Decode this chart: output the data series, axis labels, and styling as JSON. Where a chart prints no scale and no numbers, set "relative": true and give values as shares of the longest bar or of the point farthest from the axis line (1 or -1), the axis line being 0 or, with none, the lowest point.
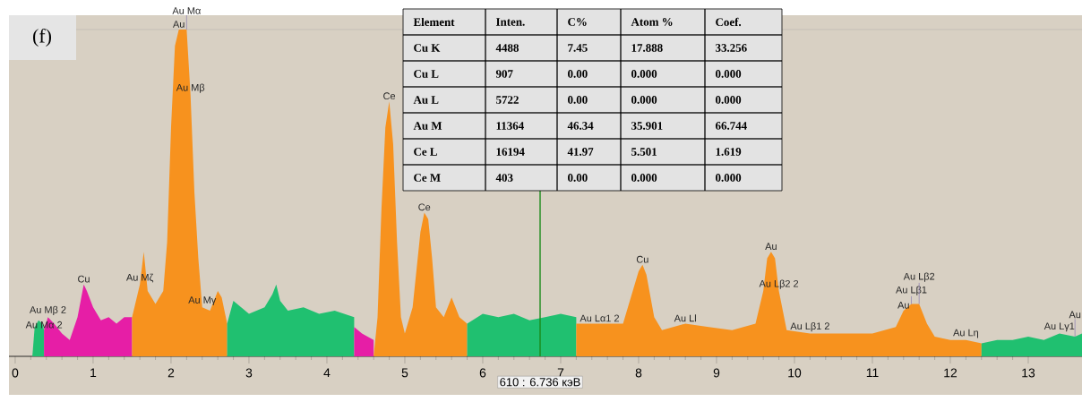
{
  "chart_data": {
    "type": "area",
    "title": "(f)",
    "relative": true,
    "xlim": [
      -0.08,
      13.69
    ],
    "xticks": [
      0,
      1,
      2,
      3,
      4,
      5,
      6,
      7,
      8,
      9,
      10,
      11,
      12,
      13
    ],
    "series": [
      {
        "color": "#20c070",
        "x": [
          0.22,
          0.25,
          0.3,
          0.35,
          0.37
        ],
        "values": [
          0,
          0.09,
          0.11,
          0.1,
          0.08
        ]
      },
      {
        "color": "#e61ea6",
        "x": [
          0.37,
          0.42,
          0.5,
          0.6,
          0.7,
          0.8,
          0.88,
          0.92,
          1.0,
          1.1,
          1.2,
          1.3,
          1.4,
          1.5
        ],
        "values": [
          0.08,
          0.12,
          0.1,
          0.07,
          0.05,
          0.12,
          0.22,
          0.2,
          0.15,
          0.11,
          0.12,
          0.1,
          0.12,
          0.12
        ]
      },
      {
        "color": "#f7921e",
        "x": [
          1.5,
          1.55,
          1.6,
          1.65,
          1.7,
          1.8,
          1.9,
          1.95,
          2.0,
          2.05,
          2.1,
          2.2,
          2.25,
          2.3,
          2.35,
          2.4,
          2.5,
          2.6,
          2.65,
          2.72
        ],
        "values": [
          0.12,
          0.17,
          0.22,
          0.32,
          0.2,
          0.16,
          0.2,
          0.35,
          0.7,
          0.95,
          1,
          1,
          0.8,
          0.5,
          0.3,
          0.15,
          0.14,
          0.2,
          0.18,
          0.1
        ]
      },
      {
        "color": "#20c070",
        "x": [
          2.72,
          2.8,
          3.0,
          3.2,
          3.3,
          3.35,
          3.4,
          3.5,
          3.7,
          3.9,
          4.1,
          4.35
        ],
        "values": [
          0.1,
          0.17,
          0.13,
          0.15,
          0.19,
          0.22,
          0.17,
          0.14,
          0.15,
          0.13,
          0.14,
          0.12
        ]
      },
      {
        "color": "#e61ea6",
        "x": [
          4.35,
          4.45,
          4.6
        ],
        "values": [
          0.09,
          0.07,
          0.05
        ]
      },
      {
        "color": "#f7921e",
        "x": [
          4.6,
          4.65,
          4.7,
          4.75,
          4.8,
          4.85,
          4.9,
          4.95,
          5.0,
          5.1,
          5.2,
          5.25,
          5.3,
          5.35,
          5.4,
          5.5,
          5.6,
          5.7,
          5.8
        ],
        "values": [
          0,
          0.12,
          0.45,
          0.7,
          0.78,
          0.65,
          0.35,
          0.12,
          0.07,
          0.15,
          0.38,
          0.44,
          0.42,
          0.3,
          0.15,
          0.12,
          0.18,
          0.12,
          0.1
        ]
      },
      {
        "color": "#20c070",
        "x": [
          5.8,
          6.0,
          6.2,
          6.4,
          6.6,
          6.8,
          7.0,
          7.2
        ],
        "values": [
          0.1,
          0.13,
          0.12,
          0.13,
          0.11,
          0.12,
          0.13,
          0.12
        ]
      },
      {
        "color": "#f7921e",
        "x": [
          7.2,
          7.5,
          7.8,
          7.9,
          8.0,
          8.05,
          8.1,
          8.2,
          8.3,
          8.6,
          8.9,
          9.2,
          9.5,
          9.6,
          9.65,
          9.7,
          9.75,
          9.8,
          9.9,
          10.2,
          10.6,
          11.0,
          11.3,
          11.4,
          11.5,
          11.6,
          11.7,
          11.8,
          12.0,
          12.2,
          12.4
        ],
        "values": [
          0.1,
          0.1,
          0.1,
          0.18,
          0.26,
          0.28,
          0.25,
          0.12,
          0.08,
          0.1,
          0.09,
          0.08,
          0.1,
          0.2,
          0.3,
          0.32,
          0.3,
          0.2,
          0.08,
          0.07,
          0.07,
          0.07,
          0.09,
          0.14,
          0.16,
          0.16,
          0.1,
          0.06,
          0.05,
          0.05,
          0.04
        ]
      },
      {
        "color": "#20c070",
        "x": [
          12.4,
          12.6,
          12.8,
          13.0,
          13.2,
          13.4,
          13.6,
          13.69
        ],
        "values": [
          0.04,
          0.05,
          0.05,
          0.06,
          0.05,
          0.07,
          0.06,
          0.07
        ]
      }
    ],
    "ref_lines": [
      {
        "axis": "x",
        "value": 6.736,
        "label": "610 : 6.736 кэВ",
        "color": "#1a8a1a"
      }
    ],
    "annotations": [
      {
        "text": "Au",
        "x": 2.1,
        "y": 1
      },
      {
        "text": "Au Mα",
        "x": 2.2,
        "y": 1
      },
      {
        "text": "Au Mβ",
        "x": 2.25,
        "y": 0.8
      },
      {
        "text": "Au Mα 2",
        "x": 0.37,
        "y": 0.08
      },
      {
        "text": "Cu",
        "x": 0.88,
        "y": 0.22
      },
      {
        "text": "Au Mβ 2",
        "x": 0.42,
        "y": 0.12
      },
      {
        "text": "Au Mζ",
        "x": 1.6,
        "y": 0.22
      },
      {
        "text": "Au Mγ",
        "x": 2.4,
        "y": 0.15
      },
      {
        "text": "Ce",
        "x": 4.8,
        "y": 0.78
      },
      {
        "text": "Ce",
        "x": 5.25,
        "y": 0.44
      },
      {
        "text": "Cu",
        "x": 8.05,
        "y": 0.28
      },
      {
        "text": "Au Lα1 2",
        "x": 7.5,
        "y": 0.1
      },
      {
        "text": "Au Ll",
        "x": 8.6,
        "y": 0.1
      },
      {
        "text": "Au",
        "x": 9.7,
        "y": 0.32
      },
      {
        "text": "Au Lβ2 2",
        "x": 9.8,
        "y": 0.2
      },
      {
        "text": "Au Lβ1 2",
        "x": 10.2,
        "y": 0.07
      },
      {
        "text": "Au",
        "x": 11.4,
        "y": 0.14
      },
      {
        "text": "Au Lβ1",
        "x": 11.5,
        "y": 0.16
      },
      {
        "text": "Au Lβ2",
        "x": 11.6,
        "y": 0.16
      },
      {
        "text": "Au Lη",
        "x": 12.2,
        "y": 0.05
      },
      {
        "text": "Au Lγ1",
        "x": 13.4,
        "y": 0.07
      },
      {
        "text": "Au",
        "x": 13.6,
        "y": 0.06
      },
      "Element",
      "Inten.",
      "C%",
      "Atom %",
      "Coef.",
      "Cu   K",
      "4488",
      "7.45",
      "17.888",
      "33.256",
      "Cu   L",
      "907",
      "0.00",
      "0.000",
      "0.000",
      "Au   L",
      "5722",
      "0.00",
      "0.000",
      "0.000",
      "Au   M",
      "11364",
      "46.34",
      "35.901",
      "66.744",
      "Ce   L",
      "16194",
      "41.97",
      "5.501",
      "1.619",
      "Ce  M",
      "403",
      "0.00",
      "0.000",
      "0.000"
    ]
  }
}
